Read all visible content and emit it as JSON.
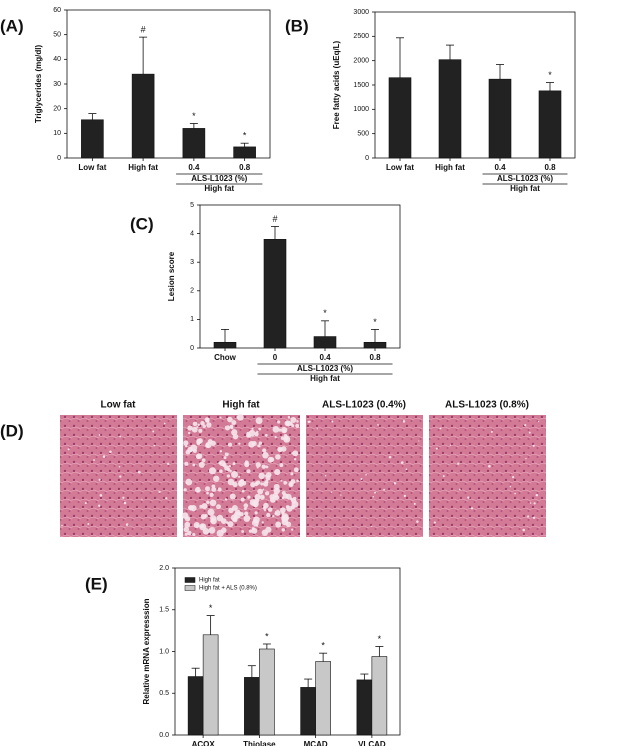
{
  "chart_data": [
    {
      "type": "bar",
      "panel": "(A)",
      "ylabel": "Triglycerides (mg/dl)",
      "categories": [
        "Low fat",
        "High fat",
        "0.4",
        "0.8"
      ],
      "values": [
        15.5,
        34,
        12,
        4.5
      ],
      "errors": [
        2.5,
        15,
        2,
        1.5
      ],
      "annotations": [
        null,
        "#",
        "*",
        "*"
      ],
      "group_label": "ALS-L1023 (%)",
      "group_sublabel": "High fat",
      "color": "#222222",
      "ylim": [
        0,
        60
      ],
      "yticks": [
        0,
        10,
        20,
        30,
        40,
        50,
        60
      ]
    },
    {
      "type": "bar",
      "panel": "(B)",
      "ylabel": "Free fatty acids (uEq/L)",
      "categories": [
        "Low fat",
        "High fat",
        "0.4",
        "0.8"
      ],
      "values": [
        1650,
        2020,
        1620,
        1380
      ],
      "errors": [
        820,
        300,
        300,
        170
      ],
      "annotations": [
        null,
        null,
        null,
        "*"
      ],
      "group_label": "ALS-L1023 (%)",
      "group_sublabel": "High fat",
      "color": "#222222",
      "ylim": [
        0,
        3000
      ],
      "yticks": [
        0,
        500,
        1000,
        1500,
        2000,
        2500,
        3000
      ]
    },
    {
      "type": "bar",
      "panel": "(C)",
      "ylabel": "Lesion score",
      "categories": [
        "Chow",
        "0",
        "0.4",
        "0.8"
      ],
      "values": [
        0.2,
        3.8,
        0.4,
        0.2
      ],
      "errors": [
        0.45,
        0.45,
        0.55,
        0.45
      ],
      "annotations": [
        null,
        "#",
        "*",
        "*"
      ],
      "group_label": "ALS-L1023 (%)",
      "group_sublabel": "High fat",
      "color": "#222222",
      "ylim": [
        0,
        5
      ],
      "yticks": [
        0,
        1,
        2,
        3,
        4,
        5
      ]
    },
    {
      "type": "grouped_bar",
      "panel": "(E)",
      "ylabel": "Relative mRNA expresssion",
      "categories": [
        "ACOX",
        "Thiolase",
        "MCAD",
        "VLCAD"
      ],
      "series": [
        {
          "name": "High fat",
          "color": "#222222",
          "values": [
            0.7,
            0.69,
            0.57,
            0.66
          ],
          "errors": [
            0.1,
            0.14,
            0.1,
            0.07
          ],
          "annotations": [
            null,
            null,
            null,
            null
          ]
        },
        {
          "name": "High fat + ALS (0.8%)",
          "color": "#c8c8c8",
          "values": [
            1.2,
            1.03,
            0.88,
            0.94
          ],
          "errors": [
            0.23,
            0.06,
            0.1,
            0.12
          ],
          "annotations": [
            "*",
            "*",
            "*",
            "*"
          ]
        }
      ],
      "ylim": [
        0,
        2
      ],
      "yticks": [
        {
          "value": 0,
          "label": "0.0"
        },
        0.5,
        {
          "value": 1,
          "label": "1.0"
        },
        1.5,
        {
          "value": 2,
          "label": "2.0"
        }
      ]
    }
  ],
  "panel_d": {
    "label": "(D)",
    "images": [
      "Low fat",
      "High fat",
      "ALS-L1023 (0.4%)",
      "ALS-L1023 (0.8%)"
    ]
  }
}
